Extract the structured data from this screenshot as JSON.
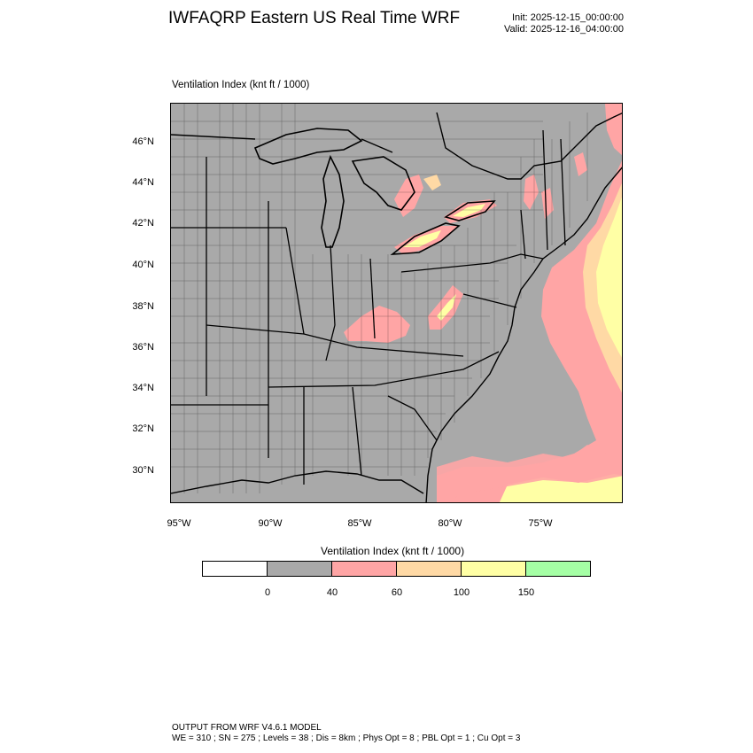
{
  "header": {
    "title": "IWFAQRP Eastern US Real Time WRF",
    "init": "Init: 2025-12-15_00:00:00",
    "valid": "Valid: 2025-12-16_04:00:00"
  },
  "map": {
    "variable_label": "Ventilation Index   (knt ft / 1000)",
    "lat_labels": [
      "46°N",
      "44°N",
      "42°N",
      "40°N",
      "38°N",
      "36°N",
      "34°N",
      "32°N",
      "30°N"
    ],
    "lon_labels": [
      "95°W",
      "90°W",
      "85°W",
      "80°W",
      "75°W"
    ],
    "colors": {
      "land": "#a9a9a9",
      "ocean": "#a9a9a9",
      "band_40_60": "#ffa5a5",
      "band_60_100": "#ffd9a5",
      "band_100_150": "#ffffa5",
      "border": "#000000"
    }
  },
  "legend": {
    "title": "Ventilation Index  (knt ft / 1000)",
    "swatches": [
      "#ffffff",
      "#a9a9a9",
      "#ffa5a5",
      "#ffd9a5",
      "#ffffa5",
      "#a5ffa5"
    ],
    "ticks": [
      "0",
      "40",
      "60",
      "100",
      "150"
    ]
  },
  "footer": {
    "line1": "OUTPUT FROM WRF V4.6.1 MODEL",
    "line2": "WE = 310 ; SN = 275 ; Levels = 38 ; Dis = 8km ; Phys Opt = 8 ; PBL Opt = 1 ; Cu Opt = 3"
  }
}
